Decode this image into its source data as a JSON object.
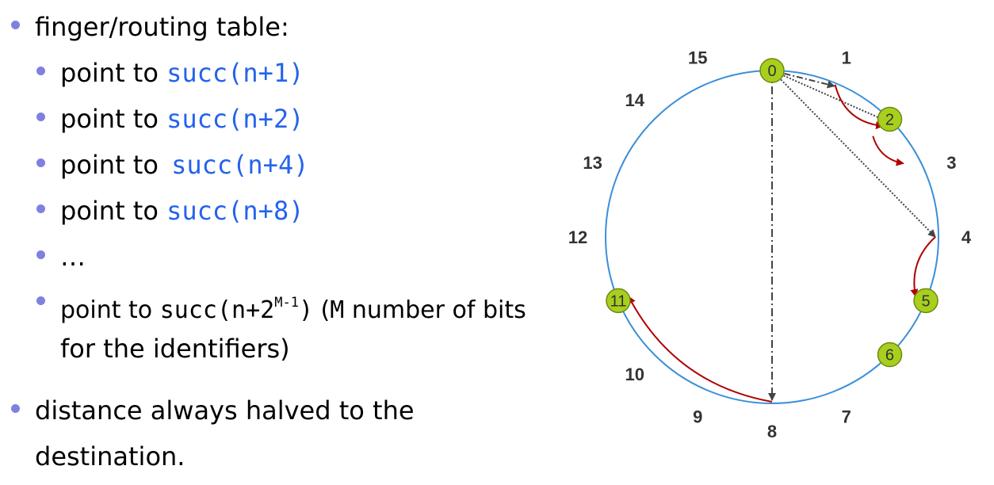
{
  "bullets": {
    "finger_table": "finger/routing table:",
    "point_prefix": "point to",
    "succ1": "succ(n+1)",
    "succ2": "succ(n+2)",
    "succ4": "succ(n+4)",
    "succ8": "succ(n+8)",
    "ellipsis": "…",
    "succ_m_base": "succ(n+2",
    "succ_m_sup": "M-1",
    "succ_m_close": ")",
    "m_open": "(",
    "m_letter": "M",
    "m_rest": "number of bits",
    "identifiers": "for the identifiers)",
    "distance": "distance always halved to the",
    "destination": "destination."
  },
  "ring": {
    "positions": [
      "0",
      "1",
      "2",
      "3",
      "4",
      "5",
      "6",
      "7",
      "8",
      "9",
      "10",
      "11",
      "12",
      "13",
      "14",
      "15"
    ],
    "nodes": [
      "0",
      "2",
      "5",
      "6",
      "11"
    ]
  },
  "colors": {
    "ring": "#3b8fd8",
    "node_fill": "#a8cf1e",
    "node_stroke": "#6b8a10",
    "finger_arrow": "#444444",
    "route_arrow": "#b00000",
    "bullet": "#8080e0",
    "code_blue": "#2563eb"
  }
}
